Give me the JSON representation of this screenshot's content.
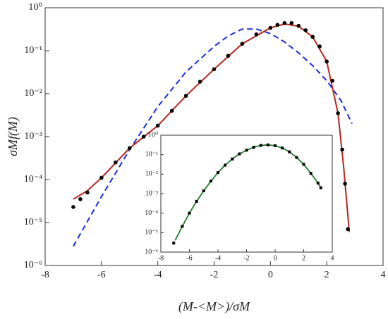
{
  "chart_data": [
    {
      "type": "scatter",
      "log_y": true,
      "xlabel": "(M-<M>)/σM",
      "ylabel": "σMf(M)",
      "xlim": [
        -8,
        4
      ],
      "xticks": [
        -8,
        -6,
        -4,
        -2,
        0,
        2,
        4
      ],
      "ylim": [
        1e-06,
        1
      ],
      "yticks": [
        {
          "value": 1e-06,
          "label": "10⁻⁶"
        },
        {
          "value": 1e-05,
          "label": "10⁻⁵"
        },
        {
          "value": 0.0001,
          "label": "10⁻⁴"
        },
        {
          "value": 0.001,
          "label": "10⁻³"
        },
        {
          "value": 0.01,
          "label": "10⁻²"
        },
        {
          "value": 0.1,
          "label": "10⁻¹"
        },
        {
          "value": 1,
          "label": "10⁰"
        }
      ],
      "series": [
        {
          "style": "dashed",
          "color": "#1a2bd6",
          "x": [
            -7,
            -6,
            -5,
            -4,
            -3,
            -2,
            -1.5,
            -1,
            -0.5,
            0,
            0.5,
            1,
            1.5,
            2,
            2.5,
            2.9
          ],
          "values": [
            2.8e-06,
            4e-05,
            0.0005,
            0.005,
            0.032,
            0.126,
            0.22,
            0.32,
            0.32,
            0.25,
            0.16,
            0.089,
            0.045,
            0.02,
            0.007,
            0.002
          ]
        },
        {
          "style": "line",
          "color": "#b5261e",
          "x": [
            -7,
            -6.5,
            -6,
            -5,
            -4,
            -3,
            -2,
            -1,
            0,
            0.5,
            1,
            1.5,
            2,
            2.4,
            2.6,
            2.8
          ],
          "values": [
            3.5e-05,
            5.5e-05,
            0.00011,
            0.00054,
            0.0018,
            0.0089,
            0.037,
            0.145,
            0.34,
            0.42,
            0.37,
            0.21,
            0.056,
            0.0035,
            0.0002,
            6e-06
          ]
        },
        {
          "style": "markers",
          "color": "#000000",
          "x": [
            -7,
            -6.75,
            -6.5,
            -6,
            -5.5,
            -5,
            -4.5,
            -4,
            -3.5,
            -3,
            -2.5,
            -2,
            -1.5,
            -1,
            -0.5,
            0,
            0.25,
            0.5,
            0.75,
            1,
            1.25,
            1.5,
            1.75,
            2,
            2.2,
            2.4,
            2.55,
            2.65,
            2.75
          ],
          "values": [
            2.3e-05,
            3.5e-05,
            5e-05,
            0.00011,
            0.00025,
            0.00054,
            0.001,
            0.0018,
            0.004,
            0.0089,
            0.019,
            0.037,
            0.076,
            0.145,
            0.24,
            0.34,
            0.4,
            0.44,
            0.44,
            0.38,
            0.3,
            0.21,
            0.126,
            0.056,
            0.02,
            0.0035,
            0.0005,
            8e-05,
            7e-06
          ]
        }
      ]
    },
    {
      "type": "scatter",
      "log_y": true,
      "xlim": [
        -8,
        4
      ],
      "xticks": [
        -8,
        -6,
        -4,
        -2,
        0,
        2,
        4
      ],
      "ylim": [
        1e-06,
        1
      ],
      "yticks": [
        {
          "value": 1e-06,
          "label": "10⁻⁶"
        },
        {
          "value": 1e-05,
          "label": "10⁻⁵"
        },
        {
          "value": 0.0001,
          "label": "10⁻⁴"
        },
        {
          "value": 0.001,
          "label": "10⁻³"
        },
        {
          "value": 0.01,
          "label": "10⁻²"
        },
        {
          "value": 0.1,
          "label": "10⁻¹"
        },
        {
          "value": 1,
          "label": "10⁰"
        }
      ],
      "series": [
        {
          "style": "line",
          "color": "#1e7b2a",
          "x": [
            -7,
            -6.5,
            -6,
            -5.5,
            -5,
            -4.5,
            -4,
            -3.5,
            -3,
            -2.5,
            -2,
            -1.5,
            -1,
            -0.5,
            0,
            0.5,
            1,
            1.5,
            2,
            2.5,
            3,
            3.2
          ],
          "values": [
            4e-06,
            2.1e-05,
            0.0001,
            0.0004,
            0.0014,
            0.0044,
            0.012,
            0.029,
            0.06,
            0.11,
            0.17,
            0.24,
            0.3,
            0.32,
            0.29,
            0.22,
            0.14,
            0.072,
            0.032,
            0.011,
            0.0035,
            0.002
          ]
        },
        {
          "style": "squares",
          "color": "#000000",
          "x": [
            -7.1,
            -6.5,
            -6,
            -5.5,
            -5,
            -4.5,
            -4,
            -3.5,
            -3,
            -2.5,
            -2,
            -1.5,
            -1,
            -0.5,
            0,
            0.5,
            1,
            1.5,
            2,
            2.5,
            3,
            3.2
          ],
          "values": [
            2.9e-06,
            2.1e-05,
            0.0001,
            0.0004,
            0.0014,
            0.0044,
            0.012,
            0.029,
            0.06,
            0.11,
            0.17,
            0.24,
            0.3,
            0.32,
            0.29,
            0.22,
            0.14,
            0.072,
            0.032,
            0.011,
            0.0035,
            0.002
          ]
        }
      ]
    }
  ]
}
